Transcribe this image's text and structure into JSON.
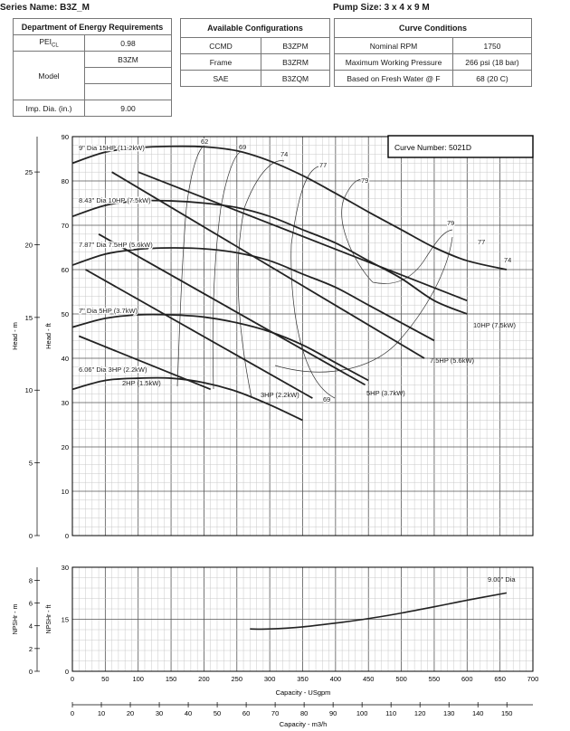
{
  "header": {
    "series": "Series Name: B3Z_M",
    "pump_size": "Pump Size: 3 x 4 x 9 M"
  },
  "doe": {
    "title": "Department of Energy Requirements",
    "pei_label": "PEI",
    "pei_sub": "CL",
    "pei_value": "0.98",
    "model_label": "Model",
    "model_values": [
      "B3ZM",
      "",
      ""
    ],
    "imp_label": "Imp. Dia. (in.)",
    "imp_value": "9.00"
  },
  "configs": {
    "title": "Available Configurations",
    "rows": [
      {
        "name": "CCMD",
        "value": "B3ZPM"
      },
      {
        "name": "Frame",
        "value": "B3ZRM"
      },
      {
        "name": "SAE",
        "value": "B3ZQM"
      }
    ]
  },
  "conditions": {
    "title": "Curve Conditions",
    "rows": [
      {
        "name": "Nominal RPM",
        "value": "1750"
      },
      {
        "name": "Maximum Working Pressure",
        "value": "266 psi (18 bar)"
      },
      {
        "name": "Based on Fresh Water @ F",
        "value": "68 (20 C)"
      }
    ]
  },
  "chart_data": [
    {
      "type": "line",
      "title": "Curve Number: 5021D",
      "xlabel": "Capacity - USgpm",
      "xlabel_metric": "Capacity - m3/h",
      "ylabel": "Head - ft",
      "ylabel_metric": "Head - m",
      "xlim": [
        0,
        700
      ],
      "ylim": [
        0,
        90
      ],
      "x_ticks": [
        "0",
        "50",
        "100",
        "150",
        "200",
        "250",
        "300",
        "350",
        "400",
        "450",
        "500",
        "550",
        "600",
        "650",
        "700"
      ],
      "y_ticks": [
        "0",
        "10",
        "20",
        "30",
        "40",
        "50",
        "60",
        "70",
        "80",
        "90"
      ],
      "y_metric_ticks": [
        "0",
        "5",
        "10",
        "15",
        "20",
        "25"
      ],
      "x_metric_ticks": [
        "0",
        "10",
        "20",
        "30",
        "40",
        "50",
        "60",
        "70",
        "80",
        "90",
        "100",
        "110",
        "120",
        "130",
        "140",
        "150"
      ],
      "impeller_curves": [
        {
          "name": "9\" Dia 15HP (11.2kW)",
          "x": [
            0,
            50,
            100,
            150,
            200,
            250,
            300,
            350,
            400,
            450,
            500,
            550,
            600,
            660
          ],
          "y": [
            84,
            86.5,
            87.5,
            87.8,
            87.7,
            86.8,
            84.5,
            81.2,
            77.2,
            73,
            69,
            65,
            62,
            60
          ]
        },
        {
          "name": "8.43\" Dia 10HP (7.5kW)",
          "x": [
            0,
            50,
            100,
            150,
            200,
            250,
            300,
            350,
            400,
            450,
            500,
            550,
            600
          ],
          "y": [
            72,
            74.5,
            75.5,
            75.5,
            75,
            74,
            72,
            69,
            66,
            62,
            58,
            53,
            50
          ]
        },
        {
          "name": "7.87\" Dia 7.5HP (5.6kW)",
          "x": [
            0,
            50,
            100,
            150,
            200,
            250,
            300,
            350,
            400,
            450,
            500,
            550
          ],
          "y": [
            61,
            63.5,
            64.6,
            64.9,
            64.7,
            63.8,
            62,
            59,
            56,
            52,
            48,
            44
          ]
        },
        {
          "name": "7\" Dia 5HP (3.7kW)",
          "x": [
            0,
            50,
            100,
            150,
            200,
            250,
            300,
            350,
            400,
            450
          ],
          "y": [
            47,
            49,
            49.8,
            49.8,
            49.3,
            48,
            46,
            43,
            39,
            35
          ]
        },
        {
          "name": "6.06\" Dia 3HP (2.2kW)",
          "x": [
            0,
            50,
            100,
            150,
            200,
            250,
            300,
            350
          ],
          "y": [
            33,
            35,
            35.5,
            35.5,
            34.5,
            32.5,
            29.5,
            26
          ]
        }
      ],
      "power_lines": [
        {
          "name": "10HP (7.5kW)",
          "x": [
            100,
            600
          ],
          "y": [
            82,
            53
          ]
        },
        {
          "name": "7.5HP (5.6kW)",
          "x": [
            60,
            535
          ],
          "y": [
            82,
            40
          ]
        },
        {
          "name": "5HP (3.7kW)",
          "x": [
            40,
            445
          ],
          "y": [
            68,
            34
          ]
        },
        {
          "name": "3HP (2.2kW)",
          "x": [
            20,
            365
          ],
          "y": [
            60,
            31
          ]
        },
        {
          "name": "2HP (1.5kW)",
          "x": [
            10,
            210
          ],
          "y": [
            45,
            33
          ]
        }
      ],
      "efficiency_labels": [
        "62",
        "69",
        "74",
        "77",
        "79",
        "79",
        "77",
        "74",
        "69"
      ],
      "npsh": {
        "ylabel": "NPSHr - ft",
        "ylabel_metric": "NPSHr - m",
        "ylim": [
          0,
          30
        ],
        "y_ticks": [
          "0",
          "15",
          "30"
        ],
        "y_metric_ticks": [
          "0",
          "2",
          "4",
          "6",
          "8"
        ],
        "series_name": "9.00\" Dia",
        "x": [
          270,
          300,
          350,
          400,
          450,
          500,
          550,
          600,
          660
        ],
        "y": [
          12.2,
          12.2,
          12.8,
          13.9,
          15.2,
          16.8,
          18.6,
          20.5,
          22.6
        ]
      }
    }
  ]
}
